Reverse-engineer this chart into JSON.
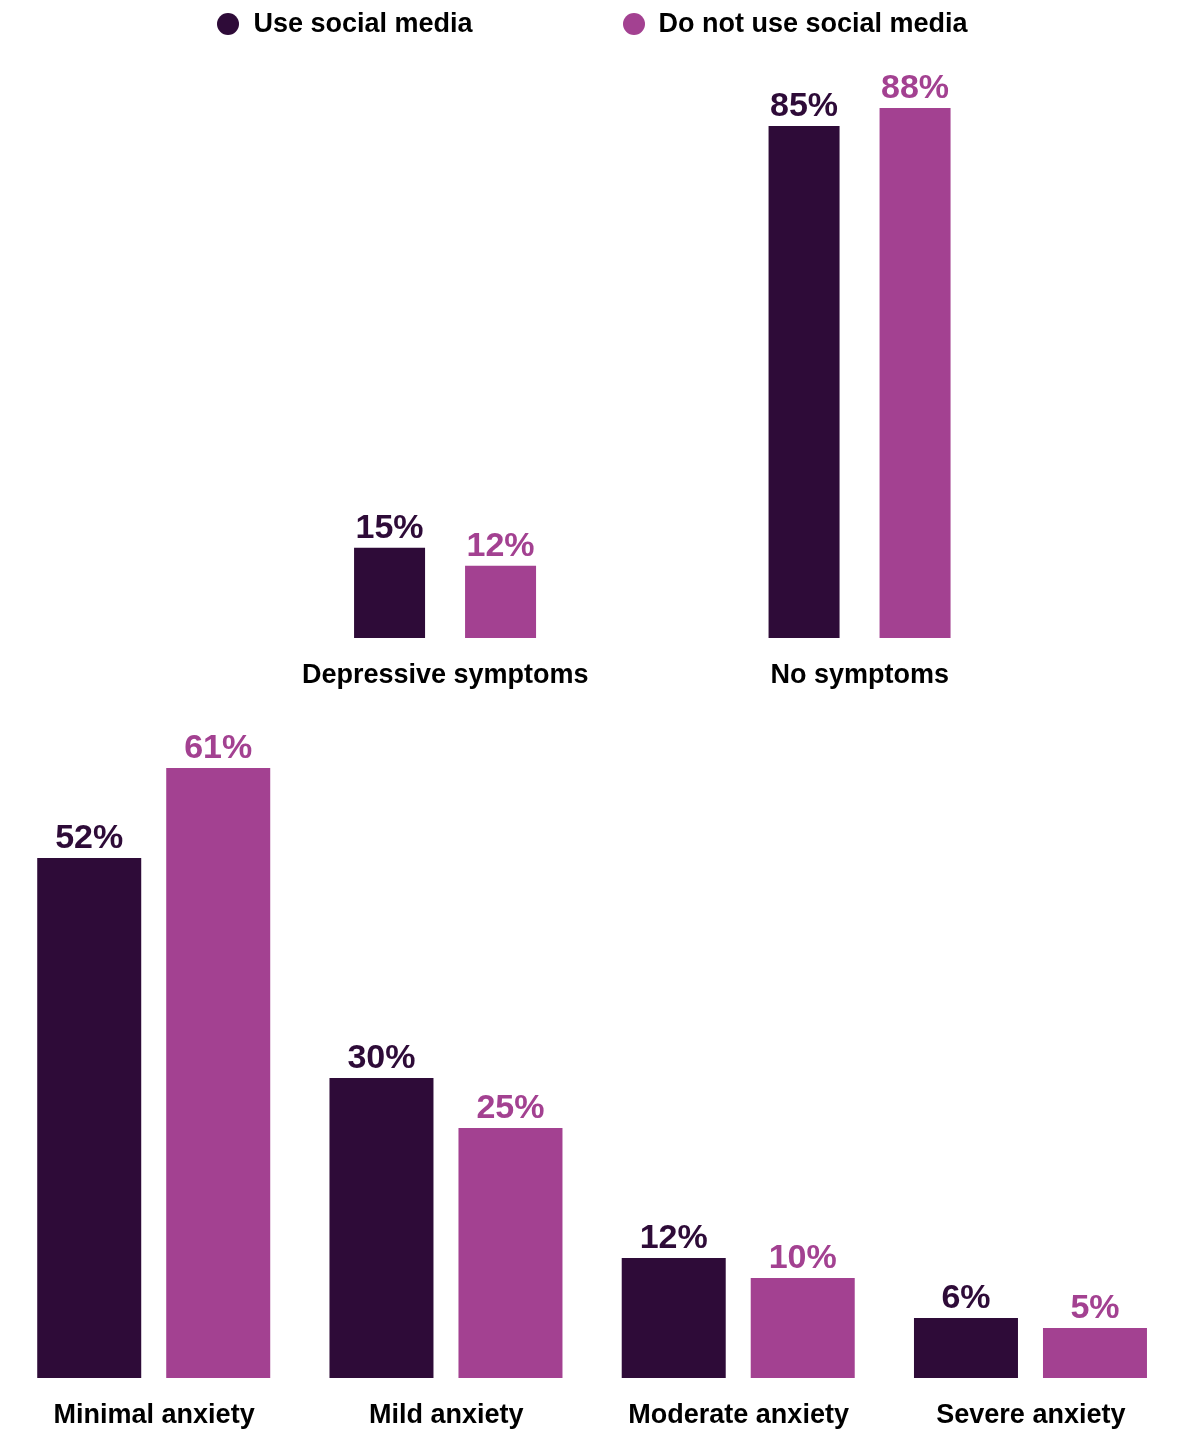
{
  "chart_data": [
    {
      "type": "bar",
      "categories": [
        "Depressive symptoms",
        "No symptoms"
      ],
      "series": [
        {
          "name": "Use social media",
          "color": "#2e0b38",
          "values": [
            15,
            85
          ],
          "value_labels": [
            "15%",
            "85%"
          ]
        },
        {
          "name": "Do not use social media",
          "color": "#a34191",
          "values": [
            12,
            88
          ],
          "value_labels": [
            "12%",
            "88%"
          ]
        }
      ],
      "legend": "top"
    },
    {
      "type": "bar",
      "categories": [
        "Minimal anxiety",
        "Mild anxiety",
        "Moderate anxiety",
        "Severe anxiety"
      ],
      "series": [
        {
          "color": "#2e0b38",
          "values": [
            52,
            30,
            12,
            6
          ],
          "value_labels": [
            "52%",
            "30%",
            "12%",
            "6%"
          ]
        },
        {
          "color": "#a34191",
          "values": [
            61,
            25,
            10,
            5
          ],
          "value_labels": [
            "61%",
            "25%",
            "10%",
            "5%"
          ]
        }
      ]
    }
  ]
}
